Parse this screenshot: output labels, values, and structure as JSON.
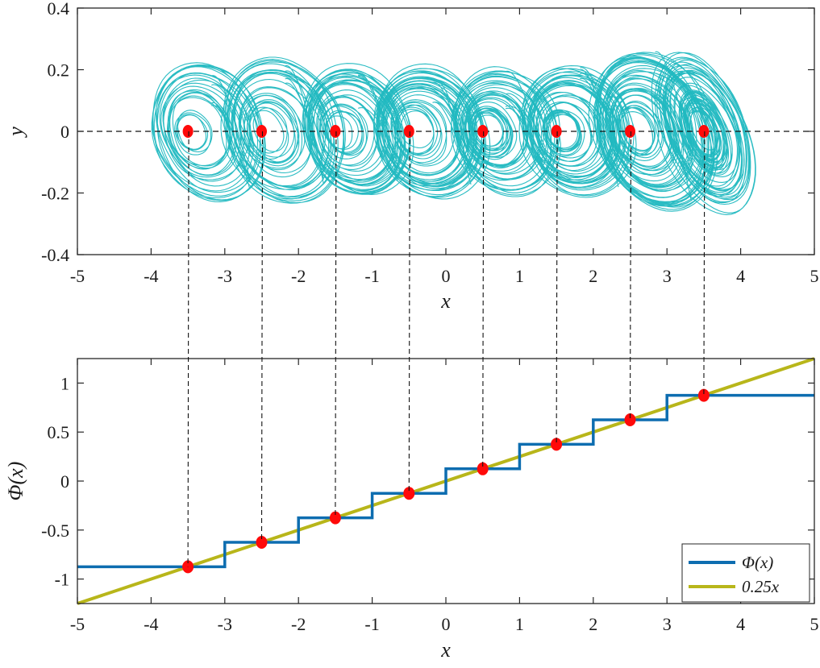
{
  "colors": {
    "attractor": "#1fb8c0",
    "staircase": "#0d6db0",
    "line": "#b8b61a",
    "equilibria": "#ff0a0a",
    "axes": "#262626"
  },
  "chart_data": [
    {
      "type": "scatter",
      "subtype": "phase-portrait",
      "xlabel": "x",
      "ylabel": "y",
      "xlim": [
        -5,
        5
      ],
      "ylim": [
        -0.4,
        0.4
      ],
      "xticks": [
        "-5",
        "-4",
        "-3",
        "-2",
        "-1",
        "0",
        "1",
        "2",
        "3",
        "4",
        "5"
      ],
      "yticks": [
        "-0.4",
        "-0.2",
        "0",
        "0.2",
        "0.4"
      ],
      "grid": false,
      "reference_line": {
        "y": 0,
        "style": "dashed"
      },
      "attractor_scrolls": [
        {
          "center": -3.5,
          "x_range": [
            -4.0,
            -2.4
          ],
          "y_range": [
            -0.22,
            0.28
          ]
        },
        {
          "center": -2.5,
          "x_range": [
            -3.0,
            -1.4
          ],
          "y_range": [
            -0.22,
            0.28
          ]
        },
        {
          "center": -1.5,
          "x_range": [
            -1.95,
            -0.4
          ],
          "y_range": [
            -0.22,
            0.24
          ]
        },
        {
          "center": -0.5,
          "x_range": [
            -1.0,
            0.6
          ],
          "y_range": [
            -0.22,
            0.25
          ]
        },
        {
          "center": 0.5,
          "x_range": [
            0.05,
            1.6
          ],
          "y_range": [
            -0.22,
            0.24
          ]
        },
        {
          "center": 1.5,
          "x_range": [
            1.0,
            2.6
          ],
          "y_range": [
            -0.22,
            0.24
          ]
        },
        {
          "center": 2.5,
          "x_range": [
            2.0,
            3.7
          ],
          "y_range": [
            -0.29,
            0.29
          ]
        },
        {
          "center": 3.5,
          "x_range": [
            2.9,
            4.1
          ],
          "y_range": [
            -0.29,
            0.29
          ]
        }
      ],
      "points": {
        "x": [
          -3.5,
          -2.5,
          -1.5,
          -0.5,
          0.5,
          1.5,
          2.5,
          3.5
        ],
        "y": [
          0,
          0,
          0,
          0,
          0,
          0,
          0,
          0
        ]
      }
    },
    {
      "type": "line",
      "xlabel": "x",
      "ylabel": "Φ(x)",
      "xlim": [
        -5,
        5
      ],
      "ylim": [
        -1.25,
        1.25
      ],
      "xticks": [
        "-5",
        "-4",
        "-3",
        "-2",
        "-1",
        "0",
        "1",
        "2",
        "3",
        "4",
        "5"
      ],
      "yticks": [
        "-1",
        "-0.5",
        "0",
        "0.5",
        "1"
      ],
      "grid": false,
      "legend_position": "bottom-right",
      "series": [
        {
          "name": "Φ(x)",
          "style": "staircase",
          "x": [
            -5,
            -3,
            -3,
            -2,
            -2,
            -1,
            -1,
            0,
            0,
            1,
            1,
            2,
            2,
            3,
            3,
            5
          ],
          "y": [
            -0.875,
            -0.875,
            -0.625,
            -0.625,
            -0.375,
            -0.375,
            -0.125,
            -0.125,
            0.125,
            0.125,
            0.375,
            0.375,
            0.625,
            0.625,
            0.875,
            0.875
          ]
        },
        {
          "name": "0.25x",
          "x": [
            -5,
            5
          ],
          "y": [
            -1.25,
            1.25
          ]
        }
      ],
      "points": {
        "x": [
          -3.5,
          -2.5,
          -1.5,
          -0.5,
          0.5,
          1.5,
          2.5,
          3.5
        ],
        "y": [
          -0.875,
          -0.625,
          -0.375,
          -0.125,
          0.125,
          0.375,
          0.625,
          0.875
        ]
      }
    }
  ]
}
